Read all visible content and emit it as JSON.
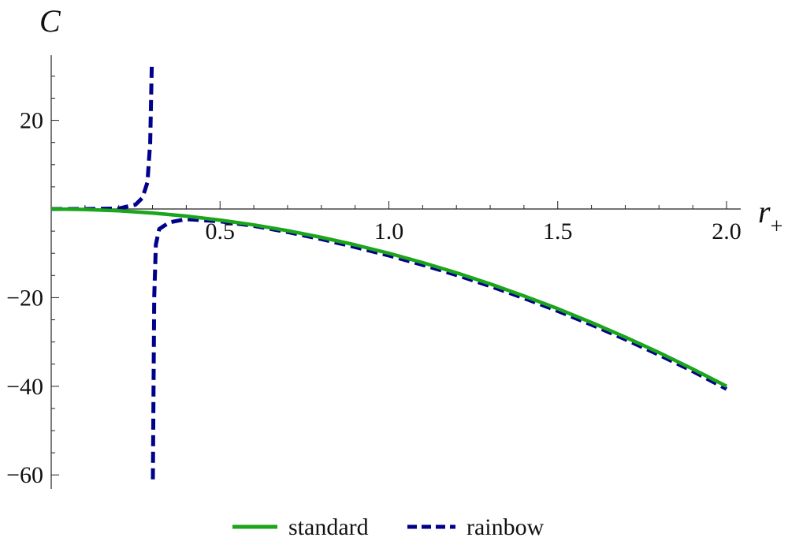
{
  "chart_data": {
    "type": "line",
    "xlabel": "r",
    "xlabel_sub": "+",
    "ylabel": "C",
    "xlim": [
      0,
      2.0
    ],
    "ylim": [
      -62,
      34
    ],
    "x_ticks": [
      0.5,
      1.0,
      1.5,
      2.0
    ],
    "x_tick_labels": [
      "0.5",
      "1.0",
      "1.5",
      "2.0"
    ],
    "y_ticks": [
      20,
      -20,
      -40,
      -60
    ],
    "y_tick_labels": [
      "20",
      "−20",
      "−40",
      "−60"
    ],
    "grid": false,
    "legend_position": "bottom-center",
    "series": [
      {
        "name": "standard",
        "color": "#1aa51a",
        "style": "solid",
        "x": [
          0.0,
          0.1,
          0.2,
          0.3,
          0.4,
          0.5,
          0.6,
          0.7,
          0.8,
          0.9,
          1.0,
          1.1,
          1.2,
          1.3,
          1.4,
          1.5,
          1.6,
          1.7,
          1.8,
          1.9,
          2.0
        ],
        "y": [
          0.0,
          -0.1,
          -0.4,
          -0.9,
          -1.6,
          -2.5,
          -3.6,
          -4.9,
          -6.4,
          -8.1,
          -10.0,
          -12.1,
          -14.4,
          -16.9,
          -19.6,
          -22.5,
          -25.6,
          -28.9,
          -32.4,
          -36.1,
          -40.0
        ]
      },
      {
        "name": "rainbow",
        "color": "#00008b",
        "style": "dashed",
        "segments": [
          {
            "x": [
              0.0,
              0.1,
              0.2,
              0.25,
              0.27,
              0.285,
              0.293,
              0.298
            ],
            "y": [
              0.0,
              0.0,
              0.1,
              1.0,
              2.5,
              6.0,
              15.0,
              33.0
            ]
          },
          {
            "x": [
              0.301,
              0.305,
              0.31,
              0.32,
              0.35,
              0.4,
              0.5,
              0.6,
              0.7,
              0.8,
              0.9,
              1.0,
              1.1,
              1.2,
              1.3,
              1.4,
              1.5,
              1.6,
              1.7,
              1.8,
              1.9,
              2.0
            ],
            "y": [
              -61.0,
              -20.0,
              -8.0,
              -4.5,
              -3.0,
              -2.3,
              -2.8,
              -3.8,
              -5.2,
              -6.8,
              -8.6,
              -10.5,
              -12.6,
              -14.9,
              -17.4,
              -20.1,
              -23.0,
              -26.1,
              -29.4,
              -32.9,
              -36.6,
              -40.6
            ]
          }
        ]
      }
    ]
  }
}
